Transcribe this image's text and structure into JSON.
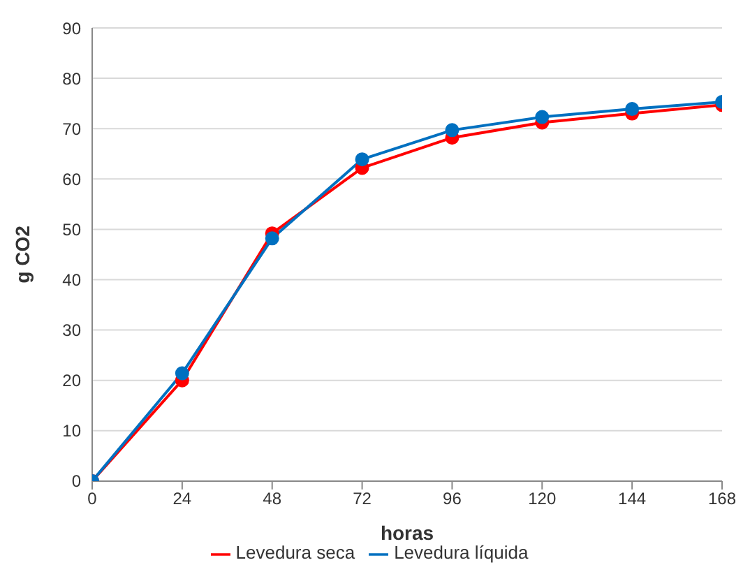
{
  "chart_data": {
    "type": "line",
    "xlabel": "horas",
    "ylabel": "g CO2",
    "x": [
      0,
      24,
      48,
      72,
      96,
      120,
      144,
      168
    ],
    "series": [
      {
        "name": "Levedura seca",
        "color": "#ff0000",
        "values": [
          0,
          20.0,
          49.2,
          62.2,
          68.2,
          71.2,
          73.0,
          74.7
        ]
      },
      {
        "name": "Levedura líquida",
        "color": "#0070c0",
        "values": [
          0,
          21.4,
          48.2,
          63.9,
          69.7,
          72.3,
          73.9,
          75.3
        ]
      }
    ],
    "xlim": [
      0,
      168
    ],
    "xticks": [
      0,
      24,
      48,
      72,
      96,
      120,
      144,
      168
    ],
    "ylim": [
      0,
      90
    ],
    "yticks": [
      0,
      10,
      20,
      30,
      40,
      50,
      60,
      70,
      80,
      90
    ],
    "grid": "y",
    "legend": "bottom",
    "marker": "circle",
    "line_style": "solid"
  }
}
